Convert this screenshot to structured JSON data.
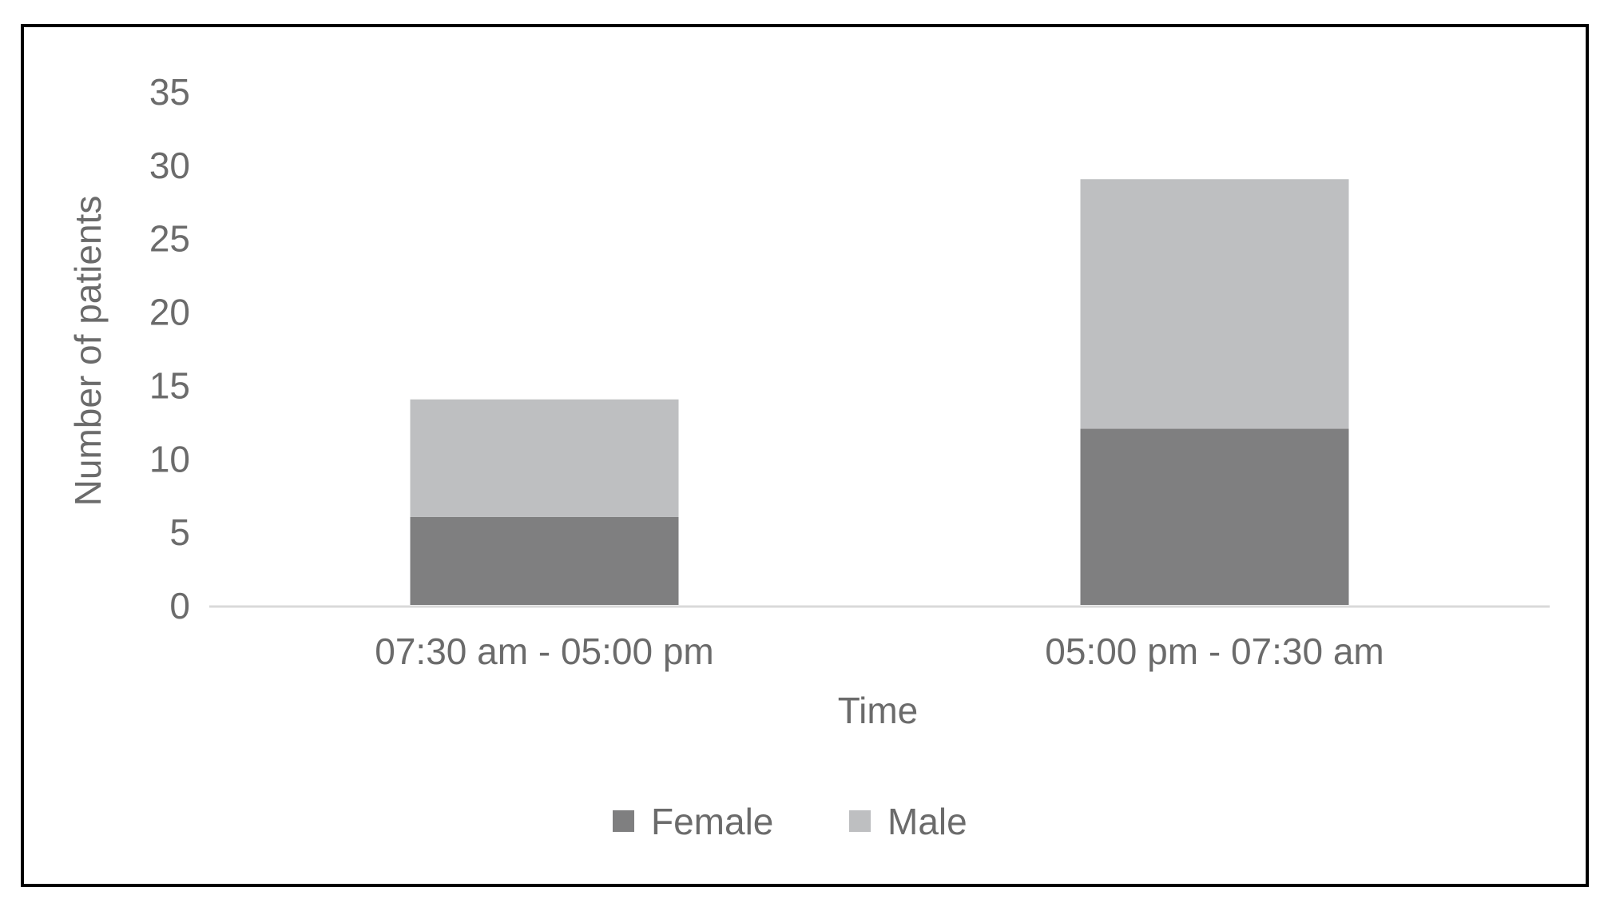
{
  "chart_data": {
    "type": "bar",
    "stacked": true,
    "categories": [
      "07:30 am - 05:00 pm",
      "05:00 pm - 07:30 am"
    ],
    "series": [
      {
        "name": "Female",
        "values": [
          6,
          12
        ],
        "color": "#7f7f80"
      },
      {
        "name": "Male",
        "values": [
          8,
          17
        ],
        "color": "#bebfc1"
      }
    ],
    "xlabel": "Time",
    "ylabel": "Number of patients",
    "ylim": [
      0,
      35
    ],
    "yticks": [
      0,
      5,
      10,
      15,
      20,
      25,
      30,
      35
    ],
    "grid": false,
    "legend": "bottom",
    "colors": {
      "text": "#6b6b6b",
      "axis_line": "#d9d9d9",
      "frame": "#000000"
    }
  }
}
